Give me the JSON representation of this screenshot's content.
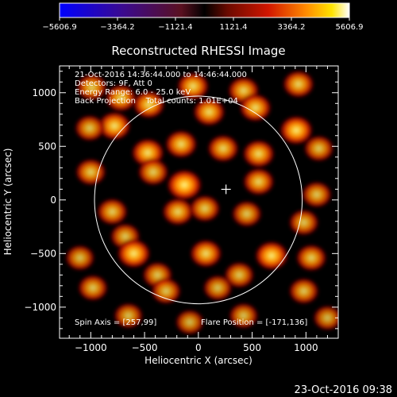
{
  "colorbar": {
    "ticks": [
      "−5606.9",
      "−3364.2",
      "−1121.4",
      "1121.4",
      "3364.2",
      "5606.9"
    ],
    "min": -5606.9,
    "max": 5606.9
  },
  "chart_data": {
    "type": "heatmap",
    "title": "Reconstructed RHESSI Image",
    "xlabel": "Heliocentric X (arcsec)",
    "ylabel": "Heliocentric Y (arcsec)",
    "xlim": [
      -1290,
      1300
    ],
    "ylim": [
      -1290,
      1250
    ],
    "x_ticks": [
      -1000,
      -500,
      0,
      500,
      1000
    ],
    "y_ticks": [
      -1000,
      -500,
      0,
      500,
      1000
    ],
    "x_tick_labels": [
      "−1000",
      "−500",
      "0",
      "500",
      "1000"
    ],
    "y_tick_labels": [
      "−1000",
      "−500",
      "0",
      "500",
      "1000"
    ],
    "info_lines": [
      "21-Oct-2016 14:36:44.000 to 14:46:44.000",
      "Detectors: 9F, Att 0",
      "Energy Range: 6.0 - 25.0 keV",
      "Back Projection    Total counts: 1.01E+04"
    ],
    "spin_axis_text": "Spin Axis = [257,99]",
    "flare_position_text": "Flare Position = [-171,136]",
    "solar_disk": {
      "center": [
        0,
        0
      ],
      "radius": 965
    },
    "marker_position": [
      257,
      99
    ],
    "blobs": [
      {
        "x": -50,
        "y": 1060,
        "v": 0.75
      },
      {
        "x": -720,
        "y": 950,
        "v": 0.7
      },
      {
        "x": -460,
        "y": 890,
        "v": 0.75
      },
      {
        "x": 420,
        "y": 1020,
        "v": 0.7
      },
      {
        "x": 930,
        "y": 1080,
        "v": 0.7
      },
      {
        "x": 100,
        "y": 820,
        "v": 0.75
      },
      {
        "x": 530,
        "y": 860,
        "v": 0.75
      },
      {
        "x": -990,
        "y": 1050,
        "v": 0.65
      },
      {
        "x": -780,
        "y": 690,
        "v": 0.8
      },
      {
        "x": -1010,
        "y": 670,
        "v": 0.6
      },
      {
        "x": 910,
        "y": 650,
        "v": 0.85
      },
      {
        "x": -470,
        "y": 440,
        "v": 0.8
      },
      {
        "x": -160,
        "y": 520,
        "v": 0.75
      },
      {
        "x": 230,
        "y": 480,
        "v": 0.7
      },
      {
        "x": 560,
        "y": 430,
        "v": 0.75
      },
      {
        "x": 1120,
        "y": 480,
        "v": 0.6
      },
      {
        "x": -1000,
        "y": 260,
        "v": 0.65
      },
      {
        "x": -420,
        "y": 260,
        "v": 0.65
      },
      {
        "x": -130,
        "y": 140,
        "v": 1.0
      },
      {
        "x": 560,
        "y": 170,
        "v": 0.7
      },
      {
        "x": 1100,
        "y": 50,
        "v": 0.6
      },
      {
        "x": -800,
        "y": -110,
        "v": 0.65
      },
      {
        "x": -190,
        "y": -110,
        "v": 0.7
      },
      {
        "x": 60,
        "y": -80,
        "v": 0.65
      },
      {
        "x": 450,
        "y": -130,
        "v": 0.6
      },
      {
        "x": 980,
        "y": -210,
        "v": 0.6
      },
      {
        "x": -680,
        "y": -340,
        "v": 0.6
      },
      {
        "x": -600,
        "y": -500,
        "v": 0.85
      },
      {
        "x": -1100,
        "y": -540,
        "v": 0.55
      },
      {
        "x": 70,
        "y": -500,
        "v": 0.75
      },
      {
        "x": 680,
        "y": -520,
        "v": 0.85
      },
      {
        "x": -380,
        "y": -700,
        "v": 0.6
      },
      {
        "x": 380,
        "y": -700,
        "v": 0.6
      },
      {
        "x": 1050,
        "y": -540,
        "v": 0.65
      },
      {
        "x": -980,
        "y": -820,
        "v": 0.6
      },
      {
        "x": -300,
        "y": -850,
        "v": 0.6
      },
      {
        "x": 180,
        "y": -820,
        "v": 0.55
      },
      {
        "x": 980,
        "y": -850,
        "v": 0.6
      },
      {
        "x": -650,
        "y": -1080,
        "v": 0.55
      },
      {
        "x": 420,
        "y": -1080,
        "v": 0.55
      },
      {
        "x": -80,
        "y": -1140,
        "v": 0.5
      },
      {
        "x": 1200,
        "y": -1100,
        "v": 0.5
      }
    ]
  },
  "footer": {
    "timestamp": "23-Oct-2016 09:38"
  }
}
